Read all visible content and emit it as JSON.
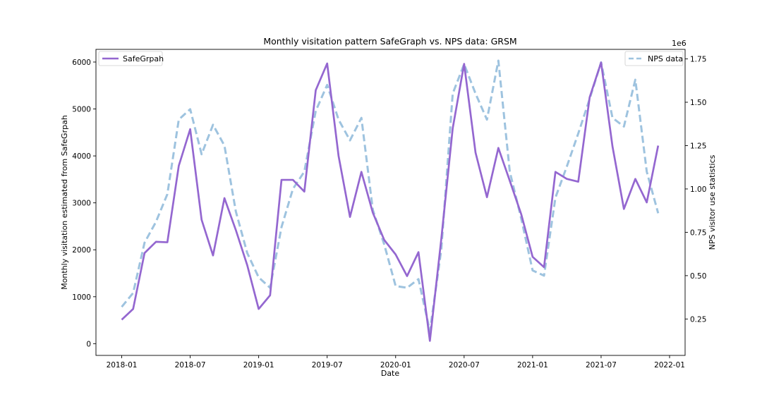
{
  "chart_data": {
    "type": "line",
    "title": "Monthly visitation pattern SafeGraph vs. NPS data: GRSM",
    "xlabel": "Date",
    "ylabel_left": "Monthly visitation estimated from SafeGrpah",
    "ylabel_right": "NPS visitor use statistics",
    "right_axis_offset_label": "1e6",
    "x_tick_labels": [
      "2018-01",
      "2018-07",
      "2019-01",
      "2019-07",
      "2020-01",
      "2020-07",
      "2021-01",
      "2021-07",
      "2022-01"
    ],
    "x_tick_months": [
      0,
      6,
      12,
      18,
      24,
      30,
      36,
      42,
      48
    ],
    "left_ylim": [
      -250,
      6270
    ],
    "left_ticks": [
      0,
      1000,
      2000,
      3000,
      4000,
      5000,
      6000
    ],
    "right_ylim": [
      0.04,
      1.805
    ],
    "right_ticks": [
      0.25,
      0.5,
      0.75,
      1.0,
      1.25,
      1.5,
      1.75
    ],
    "right_tick_labels": [
      "0.25",
      "0.50",
      "0.75",
      "1.00",
      "1.25",
      "1.50",
      "1.75"
    ],
    "series": [
      {
        "name": "SafeGrpah",
        "axis": "left",
        "color": "#9467d0",
        "style": "solid",
        "legend_position": "top-left",
        "values": [
          510,
          740,
          1930,
          2170,
          2160,
          3790,
          4570,
          2640,
          1880,
          3100,
          2420,
          1670,
          740,
          1030,
          3490,
          3490,
          3240,
          5400,
          5970,
          4000,
          2700,
          3660,
          2790,
          2210,
          1900,
          1440,
          1950,
          60,
          2230,
          4590,
          5960,
          4070,
          3120,
          4170,
          3470,
          2760,
          1850,
          1630,
          3660,
          3510,
          3450,
          5250,
          5990,
          4200,
          2870,
          3510,
          3010,
          4220
        ]
      },
      {
        "name": "NPS data",
        "axis": "right",
        "color": "#9ec3df",
        "style": "dashed",
        "legend_position": "top-right",
        "values": [
          0.32,
          0.4,
          0.69,
          0.81,
          0.97,
          1.4,
          1.46,
          1.2,
          1.37,
          1.25,
          0.87,
          0.63,
          0.49,
          0.43,
          0.78,
          1.0,
          1.1,
          1.45,
          1.6,
          1.4,
          1.28,
          1.41,
          0.88,
          0.68,
          0.44,
          0.43,
          0.48,
          0.18,
          0.65,
          1.55,
          1.72,
          1.55,
          1.4,
          1.74,
          1.1,
          0.83,
          0.53,
          0.5,
          0.95,
          1.13,
          1.32,
          1.52,
          1.73,
          1.41,
          1.36,
          1.63,
          1.1,
          0.86
        ]
      }
    ]
  }
}
